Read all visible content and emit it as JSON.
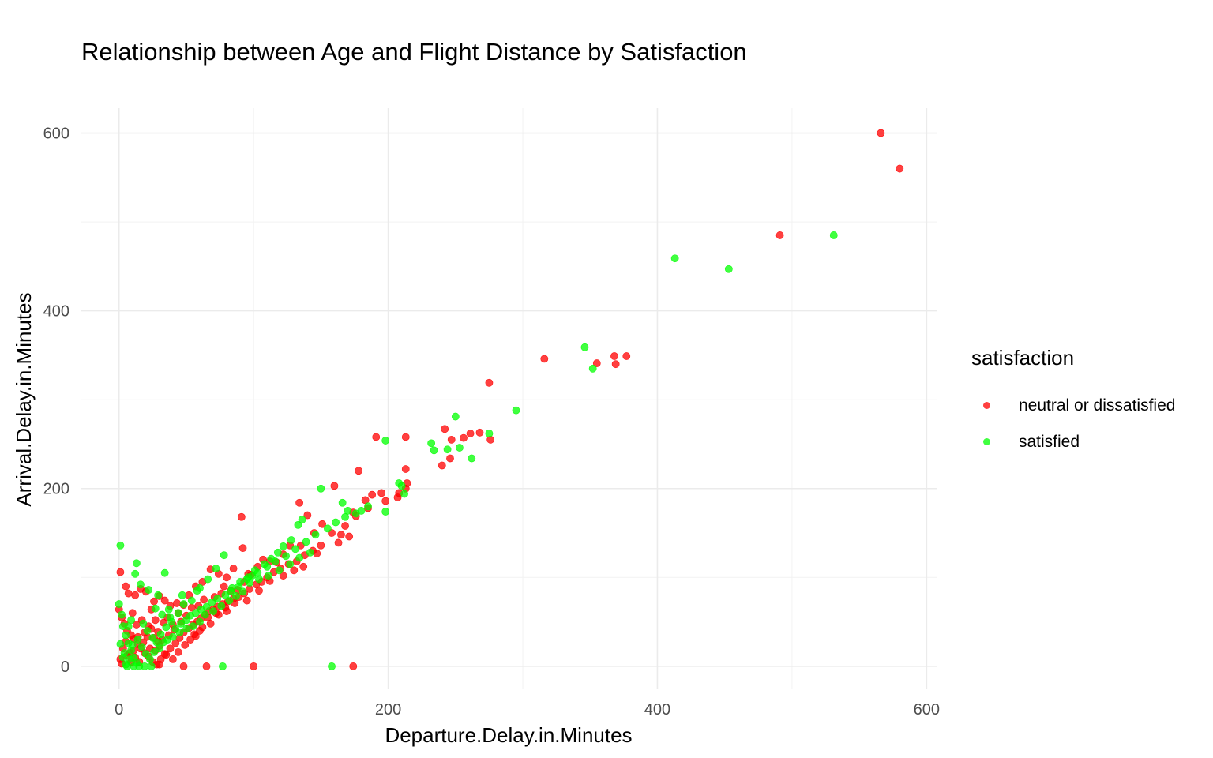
{
  "chart_data": {
    "type": "scatter",
    "title": "Relationship between Age and Flight Distance by Satisfaction",
    "xlabel": "Departure.Delay.in.Minutes",
    "ylabel": "Arrival.Delay.in.Minutes",
    "xlim": [
      -28,
      608
    ],
    "ylim": [
      -25,
      628
    ],
    "xticks": [
      0,
      200,
      400,
      600
    ],
    "yticks": [
      0,
      200,
      400,
      600
    ],
    "grid": true,
    "legend": {
      "title": "satisfaction",
      "position": "right"
    },
    "series": [
      {
        "name": "neutral or dissatisfied",
        "color": "#ff0000",
        "points": [
          [
            566,
            600
          ],
          [
            580,
            560
          ],
          [
            491,
            485
          ],
          [
            316,
            346
          ],
          [
            355,
            341
          ],
          [
            368,
            349
          ],
          [
            369,
            340
          ],
          [
            377,
            349
          ],
          [
            275,
            319
          ],
          [
            191,
            258
          ],
          [
            213,
            258
          ],
          [
            242,
            267
          ],
          [
            247,
            255
          ],
          [
            256,
            257
          ],
          [
            261,
            262
          ],
          [
            268,
            263
          ],
          [
            276,
            255
          ],
          [
            240,
            226
          ],
          [
            246,
            234
          ],
          [
            178,
            220
          ],
          [
            213,
            222
          ],
          [
            214,
            206
          ],
          [
            213,
            200
          ],
          [
            207,
            190
          ],
          [
            195,
            195
          ],
          [
            188,
            193
          ],
          [
            183,
            187
          ],
          [
            160,
            203
          ],
          [
            174,
            173
          ],
          [
            168,
            158
          ],
          [
            165,
            148
          ],
          [
            163,
            139
          ],
          [
            171,
            146
          ],
          [
            151,
            160
          ],
          [
            134,
            184
          ],
          [
            140,
            170
          ],
          [
            145,
            150
          ],
          [
            147,
            127
          ],
          [
            135,
            136
          ],
          [
            127,
            136
          ],
          [
            122,
            126
          ],
          [
            117,
            117
          ],
          [
            112,
            118
          ],
          [
            107,
            120
          ],
          [
            103,
            112
          ],
          [
            96,
            104
          ],
          [
            91,
            168
          ],
          [
            92,
            133
          ],
          [
            85,
            110
          ],
          [
            80,
            100
          ],
          [
            78,
            90
          ],
          [
            74,
            104
          ],
          [
            68,
            109
          ],
          [
            62,
            95
          ],
          [
            57,
            90
          ],
          [
            52,
            80
          ],
          [
            48,
            69
          ],
          [
            43,
            71
          ],
          [
            38,
            68
          ],
          [
            34,
            74
          ],
          [
            30,
            79
          ],
          [
            26,
            73
          ],
          [
            20,
            84
          ],
          [
            16,
            87
          ],
          [
            12,
            80
          ],
          [
            7,
            82
          ],
          [
            5,
            90
          ],
          [
            1,
            106
          ],
          [
            0,
            64
          ],
          [
            2,
            55
          ],
          [
            4,
            48
          ],
          [
            6,
            40
          ],
          [
            9,
            35
          ],
          [
            11,
            31
          ],
          [
            14,
            25
          ],
          [
            16,
            20
          ],
          [
            19,
            15
          ],
          [
            22,
            11
          ],
          [
            25,
            5
          ],
          [
            28,
            2
          ],
          [
            31,
            8
          ],
          [
            35,
            13
          ],
          [
            38,
            20
          ],
          [
            42,
            26
          ],
          [
            45,
            32
          ],
          [
            48,
            38
          ],
          [
            52,
            43
          ],
          [
            55,
            47
          ],
          [
            58,
            50
          ],
          [
            61,
            54
          ],
          [
            64,
            58
          ],
          [
            67,
            62
          ],
          [
            70,
            64
          ],
          [
            73,
            67
          ],
          [
            77,
            70
          ],
          [
            81,
            73
          ],
          [
            85,
            76
          ],
          [
            89,
            78
          ],
          [
            93,
            82
          ],
          [
            97,
            87
          ],
          [
            102,
            92
          ],
          [
            106,
            95
          ],
          [
            110,
            100
          ],
          [
            115,
            106
          ],
          [
            120,
            110
          ],
          [
            126,
            115
          ],
          [
            132,
            118
          ],
          [
            138,
            125
          ],
          [
            144,
            130
          ],
          [
            150,
            136
          ],
          [
            158,
            150
          ],
          [
            176,
            169
          ],
          [
            185,
            178
          ],
          [
            198,
            186
          ],
          [
            208,
            195
          ],
          [
            100,
            0
          ],
          [
            174,
            0
          ],
          [
            65,
            0
          ],
          [
            48,
            0
          ],
          [
            24,
            64
          ],
          [
            27,
            52
          ],
          [
            33,
            49
          ],
          [
            36,
            55
          ],
          [
            40,
            47
          ],
          [
            44,
            60
          ],
          [
            50,
            57
          ],
          [
            54,
            66
          ],
          [
            59,
            68
          ],
          [
            63,
            75
          ],
          [
            71,
            78
          ],
          [
            76,
            82
          ],
          [
            83,
            85
          ],
          [
            88,
            86
          ],
          [
            93,
            95
          ],
          [
            98,
            103
          ],
          [
            10,
            60
          ],
          [
            13,
            47
          ],
          [
            17,
            52
          ],
          [
            21,
            33
          ],
          [
            24,
            42
          ],
          [
            29,
            39
          ],
          [
            32,
            30
          ],
          [
            37,
            35
          ],
          [
            41,
            41
          ],
          [
            46,
            50
          ],
          [
            3,
            20
          ],
          [
            5,
            28
          ],
          [
            8,
            15
          ],
          [
            12,
            10
          ],
          [
            15,
            5
          ],
          [
            18,
            27
          ],
          [
            23,
            20
          ],
          [
            27,
            18
          ],
          [
            30,
            23
          ],
          [
            34,
            14
          ],
          [
            1,
            8
          ],
          [
            2,
            3
          ],
          [
            6,
            12
          ],
          [
            9,
            5
          ],
          [
            11,
            18
          ],
          [
            14,
            33
          ],
          [
            19,
            38
          ],
          [
            22,
            45
          ],
          [
            26,
            32
          ],
          [
            29,
            28
          ],
          [
            60,
            40
          ],
          [
            56,
            36
          ],
          [
            66,
            55
          ],
          [
            72,
            60
          ],
          [
            79,
            66
          ],
          [
            86,
            71
          ],
          [
            95,
            74
          ],
          [
            104,
            85
          ],
          [
            112,
            96
          ],
          [
            122,
            102
          ],
          [
            130,
            108
          ],
          [
            137,
            112
          ],
          [
            30,
            2
          ],
          [
            40,
            8
          ],
          [
            44,
            16
          ],
          [
            49,
            24
          ],
          [
            53,
            30
          ],
          [
            57,
            34
          ],
          [
            62,
            44
          ],
          [
            68,
            48
          ],
          [
            74,
            58
          ],
          [
            80,
            62
          ]
        ]
      },
      {
        "name": "satisfied",
        "color": "#00ff00",
        "points": [
          [
            531,
            485
          ],
          [
            413,
            459
          ],
          [
            453,
            447
          ],
          [
            346,
            359
          ],
          [
            352,
            335
          ],
          [
            295,
            288
          ],
          [
            250,
            281
          ],
          [
            232,
            251
          ],
          [
            234,
            243
          ],
          [
            244,
            244
          ],
          [
            253,
            246
          ],
          [
            262,
            234
          ],
          [
            275,
            262
          ],
          [
            198,
            254
          ],
          [
            150,
            200
          ],
          [
            208,
            206
          ],
          [
            210,
            203
          ],
          [
            212,
            194
          ],
          [
            198,
            174
          ],
          [
            180,
            175
          ],
          [
            170,
            175
          ],
          [
            166,
            184
          ],
          [
            136,
            165
          ],
          [
            133,
            159
          ],
          [
            128,
            142
          ],
          [
            122,
            135
          ],
          [
            118,
            128
          ],
          [
            113,
            121
          ],
          [
            108,
            115
          ],
          [
            101,
            108
          ],
          [
            96,
            100
          ],
          [
            89,
            90
          ],
          [
            83,
            84
          ],
          [
            78,
            125
          ],
          [
            72,
            110
          ],
          [
            66,
            98
          ],
          [
            60,
            88
          ],
          [
            54,
            74
          ],
          [
            48,
            70
          ],
          [
            44,
            60
          ],
          [
            38,
            55
          ],
          [
            34,
            105
          ],
          [
            29,
            80
          ],
          [
            22,
            86
          ],
          [
            16,
            92
          ],
          [
            12,
            104
          ],
          [
            13,
            116
          ],
          [
            1,
            136
          ],
          [
            0,
            70
          ],
          [
            2,
            58
          ],
          [
            3,
            45
          ],
          [
            5,
            35
          ],
          [
            7,
            26
          ],
          [
            9,
            18
          ],
          [
            11,
            10
          ],
          [
            13,
            4
          ],
          [
            15,
            0
          ],
          [
            19,
            0
          ],
          [
            24,
            0
          ],
          [
            11,
            0
          ],
          [
            6,
            0
          ],
          [
            77,
            0
          ],
          [
            158,
            0
          ],
          [
            18,
            48
          ],
          [
            21,
            40
          ],
          [
            25,
            32
          ],
          [
            28,
            27
          ],
          [
            31,
            36
          ],
          [
            35,
            44
          ],
          [
            39,
            50
          ],
          [
            42,
            42
          ],
          [
            46,
            48
          ],
          [
            50,
            52
          ],
          [
            53,
            57
          ],
          [
            57,
            60
          ],
          [
            61,
            64
          ],
          [
            65,
            67
          ],
          [
            69,
            72
          ],
          [
            73,
            76
          ],
          [
            79,
            80
          ],
          [
            84,
            88
          ],
          [
            90,
            95
          ],
          [
            95,
            98
          ],
          [
            99,
            102
          ],
          [
            103,
            105
          ],
          [
            110,
            112
          ],
          [
            116,
            118
          ],
          [
            124,
            124
          ],
          [
            131,
            132
          ],
          [
            139,
            140
          ],
          [
            146,
            148
          ],
          [
            155,
            155
          ],
          [
            161,
            162
          ],
          [
            168,
            168
          ],
          [
            176,
            172
          ],
          [
            185,
            180
          ],
          [
            4,
            15
          ],
          [
            8,
            8
          ],
          [
            10,
            24
          ],
          [
            14,
            30
          ],
          [
            17,
            22
          ],
          [
            20,
            14
          ],
          [
            23,
            8
          ],
          [
            26,
            16
          ],
          [
            30,
            20
          ],
          [
            33,
            27
          ],
          [
            36,
            30
          ],
          [
            40,
            33
          ],
          [
            45,
            38
          ],
          [
            50,
            42
          ],
          [
            55,
            45
          ],
          [
            60,
            50
          ],
          [
            1,
            25
          ],
          [
            3,
            10
          ],
          [
            5,
            2
          ],
          [
            7,
            45
          ],
          [
            9,
            52
          ],
          [
            27,
            65
          ],
          [
            32,
            58
          ],
          [
            37,
            64
          ],
          [
            47,
            80
          ],
          [
            58,
            85
          ],
          [
            64,
            58
          ],
          [
            70,
            62
          ],
          [
            76,
            68
          ],
          [
            82,
            74
          ],
          [
            87,
            79
          ],
          [
            92,
            84
          ],
          [
            97,
            94
          ],
          [
            104,
            98
          ],
          [
            111,
            102
          ],
          [
            119,
            108
          ],
          [
            127,
            115
          ],
          [
            134,
            122
          ],
          [
            142,
            128
          ]
        ]
      }
    ]
  }
}
